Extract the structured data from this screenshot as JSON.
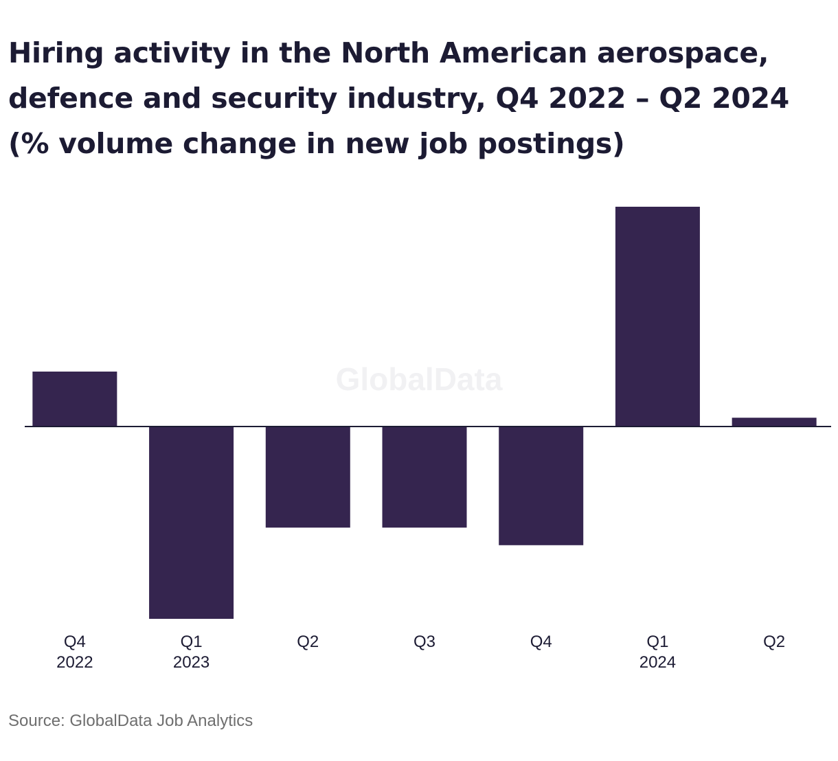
{
  "chart_data": {
    "type": "bar",
    "title_lines": [
      "Hiring activity in the North American aerospace,",
      "defence and security industry, Q4 2022 – Q2 2024",
      "(% volume change in new job postings)"
    ],
    "categories": [
      [
        "Q4",
        "2022"
      ],
      [
        "Q1",
        "2023"
      ],
      [
        "Q2",
        ""
      ],
      [
        "Q3",
        ""
      ],
      [
        "Q4",
        ""
      ],
      [
        "Q1",
        "2024"
      ],
      [
        "Q2",
        ""
      ]
    ],
    "values": [
      5.0,
      -17.5,
      -9.2,
      -9.2,
      -10.8,
      20.0,
      0.8
    ],
    "ylim": [
      -18,
      21
    ],
    "bar_color": "#35254f",
    "watermark": "GlobalData",
    "grid": false
  },
  "source": "Source: GlobalData Job Analytics"
}
